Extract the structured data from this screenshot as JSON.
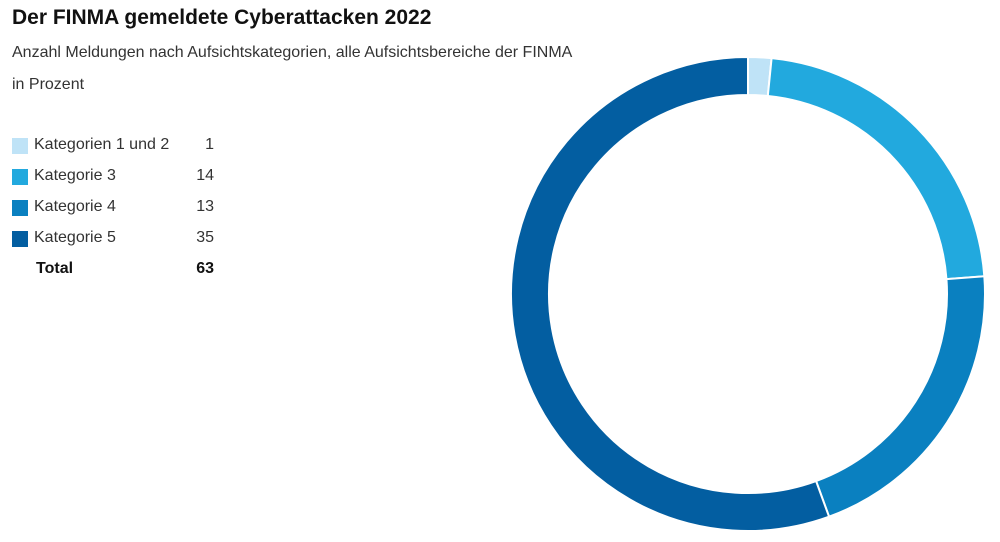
{
  "chart_data": {
    "type": "pie",
    "title": "Der FINMA gemeldete Cyberattacken 2022",
    "subtitle": "Anzahl Meldungen nach Aufsichtskategorien, alle Aufsichtsbereiche der FINMA",
    "unit_label": "in Prozent",
    "categories": [
      "Kategorien 1 und 2",
      "Kategorie 3",
      "Kategorie 4",
      "Kategorie 5"
    ],
    "values": [
      1,
      14,
      13,
      35
    ],
    "colors": [
      "#bfe3f7",
      "#22a9de",
      "#0a80c0",
      "#035ea1"
    ],
    "total": {
      "label": "Total",
      "value": 63
    },
    "donut": true,
    "legend_position": "left"
  }
}
